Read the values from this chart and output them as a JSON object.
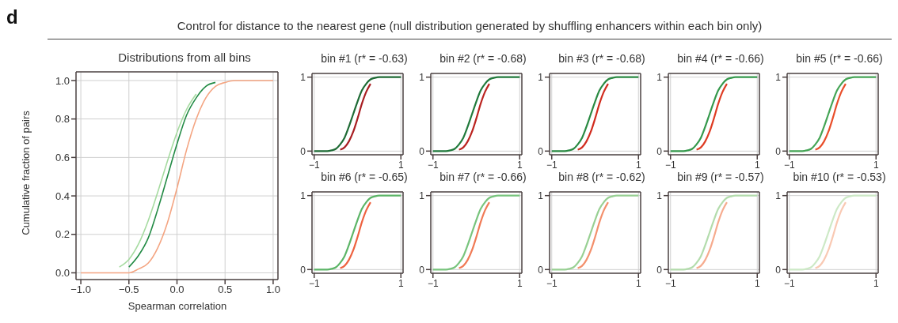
{
  "chart_data": [
    {
      "type": "line",
      "title": "Distributions from all bins",
      "xlabel": "Spearman correlation",
      "ylabel": "Cumulative fraction of pairs",
      "annotations": [
        "d",
        "Control for distance to the nearest gene (null distribution generated by shuffling enhancers within each bin only)"
      ],
      "x": [
        -1,
        -0.9,
        -0.8,
        -0.7,
        -0.6,
        -0.5,
        -0.4,
        -0.3,
        -0.2,
        -0.1,
        0,
        0.1,
        0.2,
        0.3,
        0.4,
        0.5,
        0.6,
        0.7,
        0.8,
        0.9,
        1
      ],
      "series": [
        {
          "color": "#a6dba0",
          "values": [
            null,
            null,
            null,
            null,
            0.03,
            0.07,
            0.15,
            0.27,
            0.42,
            0.58,
            0.73,
            0.85,
            0.93,
            null,
            null,
            null,
            null,
            null,
            null,
            null,
            null
          ]
        },
        {
          "color": "#238b45",
          "values": [
            null,
            null,
            null,
            null,
            null,
            0.03,
            0.09,
            0.18,
            0.33,
            0.5,
            0.67,
            0.82,
            0.91,
            0.97,
            0.99,
            null,
            null,
            null,
            null,
            null,
            null
          ]
        },
        {
          "color": "#f4a582",
          "values": [
            0,
            0,
            0,
            0,
            0,
            0,
            0.02,
            0.05,
            0.13,
            0.26,
            0.44,
            0.64,
            0.8,
            0.91,
            0.97,
            0.99,
            1,
            1,
            1,
            1,
            1
          ]
        }
      ],
      "xlim": [
        -1.05,
        1.05
      ],
      "ylim": [
        -0.035,
        1.045
      ],
      "xticks": [
        {
          "value": -1,
          "label": "−1.0"
        },
        {
          "value": -0.5,
          "label": "−0.5"
        },
        {
          "value": 0,
          "label": "0.0"
        },
        {
          "value": 0.5,
          "label": "0.5"
        },
        {
          "value": 1,
          "label": "1.0"
        }
      ],
      "yticks": [
        {
          "value": 0,
          "label": "0.0"
        },
        {
          "value": 0.2,
          "label": "0.2"
        },
        {
          "value": 0.4,
          "label": "0.4"
        },
        {
          "value": 0.6,
          "label": "0.6"
        },
        {
          "value": 0.8,
          "label": "0.8"
        },
        {
          "value": 1,
          "label": "1.0"
        }
      ],
      "grid": true
    },
    {
      "type": "line",
      "title": "bin #1 (r* = -0.63)",
      "x": [
        -1,
        -0.9,
        -0.8,
        -0.7,
        -0.6,
        -0.5,
        -0.4,
        -0.3,
        -0.2,
        -0.1,
        0,
        0.1,
        0.2,
        0.3,
        0.4,
        0.5,
        0.6,
        0.7,
        0.8,
        0.9,
        1
      ],
      "series": [
        {
          "color": "#a81e22",
          "values": [
            null,
            null,
            null,
            null,
            null,
            null,
            0.02,
            0.05,
            0.13,
            0.26,
            0.44,
            0.64,
            0.8,
            0.91,
            null,
            null,
            null,
            null,
            null,
            null,
            null
          ]
        },
        {
          "color": "#1e6b35",
          "values": [
            0,
            0,
            0,
            0,
            0.01,
            0.03,
            0.09,
            0.18,
            0.33,
            0.5,
            0.67,
            0.82,
            0.91,
            0.97,
            0.99,
            1,
            1,
            1,
            1,
            1,
            1
          ]
        }
      ],
      "xlim": [
        -1.05,
        1.05
      ],
      "ylim": [
        -0.05,
        1.05
      ],
      "xticks": [
        {
          "value": -1,
          "label": "−1"
        },
        {
          "value": 1,
          "label": "1"
        }
      ],
      "yticks": [
        {
          "value": 0,
          "label": "0"
        },
        {
          "value": 1,
          "label": "1"
        }
      ],
      "grid": true
    },
    {
      "type": "line",
      "title": "bin #2 (r* = -0.68)",
      "x": [
        -1,
        -0.9,
        -0.8,
        -0.7,
        -0.6,
        -0.5,
        -0.4,
        -0.3,
        -0.2,
        -0.1,
        0,
        0.1,
        0.2,
        0.3,
        0.4,
        0.5,
        0.6,
        0.7,
        0.8,
        0.9,
        1
      ],
      "series": [
        {
          "color": "#bb2420",
          "values": [
            null,
            null,
            null,
            null,
            null,
            null,
            0.02,
            0.05,
            0.13,
            0.26,
            0.44,
            0.64,
            0.8,
            0.91,
            null,
            null,
            null,
            null,
            null,
            null,
            null
          ]
        },
        {
          "color": "#217a3c",
          "values": [
            0,
            0,
            0,
            0,
            0.01,
            0.03,
            0.09,
            0.18,
            0.33,
            0.5,
            0.67,
            0.82,
            0.91,
            0.97,
            0.99,
            1,
            1,
            1,
            1,
            1,
            1
          ]
        }
      ],
      "xlim": [
        -1.05,
        1.05
      ],
      "ylim": [
        -0.05,
        1.05
      ],
      "xticks": [
        {
          "value": -1,
          "label": "−1"
        },
        {
          "value": 1,
          "label": "1"
        }
      ],
      "yticks": [
        {
          "value": 0,
          "label": "0"
        },
        {
          "value": 1,
          "label": "1"
        }
      ],
      "grid": true
    },
    {
      "type": "line",
      "title": "bin #3 (r* = -0.68)",
      "x": [
        -1,
        -0.9,
        -0.8,
        -0.7,
        -0.6,
        -0.5,
        -0.4,
        -0.3,
        -0.2,
        -0.1,
        0,
        0.1,
        0.2,
        0.3,
        0.4,
        0.5,
        0.6,
        0.7,
        0.8,
        0.9,
        1
      ],
      "series": [
        {
          "color": "#d12c1e",
          "values": [
            null,
            null,
            null,
            null,
            null,
            null,
            0.02,
            0.05,
            0.13,
            0.26,
            0.44,
            0.64,
            0.8,
            0.91,
            null,
            null,
            null,
            null,
            null,
            null,
            null
          ]
        },
        {
          "color": "#2a8a43",
          "values": [
            0,
            0,
            0,
            0,
            0.01,
            0.03,
            0.09,
            0.18,
            0.33,
            0.5,
            0.67,
            0.82,
            0.91,
            0.97,
            0.99,
            1,
            1,
            1,
            1,
            1,
            1
          ]
        }
      ],
      "xlim": [
        -1.05,
        1.05
      ],
      "ylim": [
        -0.05,
        1.05
      ],
      "xticks": [
        {
          "value": -1,
          "label": "−1"
        },
        {
          "value": 1,
          "label": "1"
        }
      ],
      "yticks": [
        {
          "value": 0,
          "label": "0"
        },
        {
          "value": 1,
          "label": "1"
        }
      ],
      "grid": true
    },
    {
      "type": "line",
      "title": "bin #4 (r* = -0.66)",
      "x": [
        -1,
        -0.9,
        -0.8,
        -0.7,
        -0.6,
        -0.5,
        -0.4,
        -0.3,
        -0.2,
        -0.1,
        0,
        0.1,
        0.2,
        0.3,
        0.4,
        0.5,
        0.6,
        0.7,
        0.8,
        0.9,
        1
      ],
      "series": [
        {
          "color": "#de3b22",
          "values": [
            null,
            null,
            null,
            null,
            null,
            null,
            0.02,
            0.05,
            0.13,
            0.26,
            0.44,
            0.64,
            0.8,
            0.91,
            null,
            null,
            null,
            null,
            null,
            null,
            null
          ]
        },
        {
          "color": "#34994c",
          "values": [
            0,
            0,
            0,
            0,
            0.01,
            0.03,
            0.09,
            0.18,
            0.33,
            0.5,
            0.67,
            0.82,
            0.91,
            0.97,
            0.99,
            1,
            1,
            1,
            1,
            1,
            1
          ]
        }
      ],
      "xlim": [
        -1.05,
        1.05
      ],
      "ylim": [
        -0.05,
        1.05
      ],
      "xticks": [
        {
          "value": -1,
          "label": "−1"
        },
        {
          "value": 1,
          "label": "1"
        }
      ],
      "yticks": [
        {
          "value": 0,
          "label": "0"
        },
        {
          "value": 1,
          "label": "1"
        }
      ],
      "grid": true
    },
    {
      "type": "line",
      "title": "bin #5 (r* = -0.66)",
      "x": [
        -1,
        -0.9,
        -0.8,
        -0.7,
        -0.6,
        -0.5,
        -0.4,
        -0.3,
        -0.2,
        -0.1,
        0,
        0.1,
        0.2,
        0.3,
        0.4,
        0.5,
        0.6,
        0.7,
        0.8,
        0.9,
        1
      ],
      "series": [
        {
          "color": "#e94e2a",
          "values": [
            null,
            null,
            null,
            null,
            null,
            null,
            0.02,
            0.05,
            0.13,
            0.26,
            0.44,
            0.64,
            0.8,
            0.91,
            null,
            null,
            null,
            null,
            null,
            null,
            null
          ]
        },
        {
          "color": "#45a556",
          "values": [
            0,
            0,
            0,
            0,
            0.01,
            0.03,
            0.09,
            0.18,
            0.33,
            0.5,
            0.67,
            0.82,
            0.91,
            0.97,
            0.99,
            1,
            1,
            1,
            1,
            1,
            1
          ]
        }
      ],
      "xlim": [
        -1.05,
        1.05
      ],
      "ylim": [
        -0.05,
        1.05
      ],
      "xticks": [
        {
          "value": -1,
          "label": "−1"
        },
        {
          "value": 1,
          "label": "1"
        }
      ],
      "yticks": [
        {
          "value": 0,
          "label": "0"
        },
        {
          "value": 1,
          "label": "1"
        }
      ],
      "grid": true
    },
    {
      "type": "line",
      "title": "bin #6 (r* = -0.65)",
      "x": [
        -1,
        -0.9,
        -0.8,
        -0.7,
        -0.6,
        -0.5,
        -0.4,
        -0.3,
        -0.2,
        -0.1,
        0,
        0.1,
        0.2,
        0.3,
        0.4,
        0.5,
        0.6,
        0.7,
        0.8,
        0.9,
        1
      ],
      "series": [
        {
          "color": "#ee6240",
          "values": [
            null,
            null,
            null,
            null,
            null,
            null,
            0.02,
            0.05,
            0.13,
            0.26,
            0.44,
            0.64,
            0.8,
            0.91,
            null,
            null,
            null,
            null,
            null,
            null,
            null
          ]
        },
        {
          "color": "#5cb567",
          "values": [
            0,
            0,
            0,
            0,
            0.01,
            0.03,
            0.09,
            0.18,
            0.33,
            0.5,
            0.67,
            0.82,
            0.91,
            0.97,
            0.99,
            1,
            1,
            1,
            1,
            1,
            1
          ]
        }
      ],
      "xlim": [
        -1.05,
        1.05
      ],
      "ylim": [
        -0.05,
        1.05
      ],
      "xticks": [
        {
          "value": -1,
          "label": "−1"
        },
        {
          "value": 1,
          "label": "1"
        }
      ],
      "yticks": [
        {
          "value": 0,
          "label": "0"
        },
        {
          "value": 1,
          "label": "1"
        }
      ],
      "grid": true
    },
    {
      "type": "line",
      "title": "bin #7 (r* = -0.66)",
      "x": [
        -1,
        -0.9,
        -0.8,
        -0.7,
        -0.6,
        -0.5,
        -0.4,
        -0.3,
        -0.2,
        -0.1,
        0,
        0.1,
        0.2,
        0.3,
        0.4,
        0.5,
        0.6,
        0.7,
        0.8,
        0.9,
        1
      ],
      "series": [
        {
          "color": "#f07a55",
          "values": [
            null,
            null,
            null,
            null,
            null,
            null,
            0.02,
            0.05,
            0.13,
            0.26,
            0.44,
            0.64,
            0.8,
            0.91,
            null,
            null,
            null,
            null,
            null,
            null,
            null
          ]
        },
        {
          "color": "#78c47d",
          "values": [
            0,
            0,
            0,
            0,
            0.01,
            0.03,
            0.09,
            0.18,
            0.33,
            0.5,
            0.67,
            0.82,
            0.91,
            0.97,
            0.99,
            1,
            1,
            1,
            1,
            1,
            1
          ]
        }
      ],
      "xlim": [
        -1.05,
        1.05
      ],
      "ylim": [
        -0.05,
        1.05
      ],
      "xticks": [
        {
          "value": -1,
          "label": "−1"
        },
        {
          "value": 1,
          "label": "1"
        }
      ],
      "yticks": [
        {
          "value": 0,
          "label": "0"
        },
        {
          "value": 1,
          "label": "1"
        }
      ],
      "grid": true
    },
    {
      "type": "line",
      "title": "bin #8 (r* = -0.62)",
      "x": [
        -1,
        -0.9,
        -0.8,
        -0.7,
        -0.6,
        -0.5,
        -0.4,
        -0.3,
        -0.2,
        -0.1,
        0,
        0.1,
        0.2,
        0.3,
        0.4,
        0.5,
        0.6,
        0.7,
        0.8,
        0.9,
        1
      ],
      "series": [
        {
          "color": "#f3906c",
          "values": [
            null,
            null,
            null,
            null,
            null,
            null,
            0.02,
            0.05,
            0.13,
            0.26,
            0.44,
            0.64,
            0.8,
            0.91,
            null,
            null,
            null,
            null,
            null,
            null,
            null
          ]
        },
        {
          "color": "#98d093",
          "values": [
            0,
            0,
            0,
            0,
            0.01,
            0.03,
            0.09,
            0.18,
            0.33,
            0.5,
            0.67,
            0.82,
            0.91,
            0.97,
            0.99,
            1,
            1,
            1,
            1,
            1,
            1
          ]
        }
      ],
      "xlim": [
        -1.05,
        1.05
      ],
      "ylim": [
        -0.05,
        1.05
      ],
      "xticks": [
        {
          "value": -1,
          "label": "−1"
        },
        {
          "value": 1,
          "label": "1"
        }
      ],
      "yticks": [
        {
          "value": 0,
          "label": "0"
        },
        {
          "value": 1,
          "label": "1"
        }
      ],
      "grid": true
    },
    {
      "type": "line",
      "title": "bin #9 (r* = -0.57)",
      "x": [
        -1,
        -0.9,
        -0.8,
        -0.7,
        -0.6,
        -0.5,
        -0.4,
        -0.3,
        -0.2,
        -0.1,
        0,
        0.1,
        0.2,
        0.3,
        0.4,
        0.5,
        0.6,
        0.7,
        0.8,
        0.9,
        1
      ],
      "series": [
        {
          "color": "#f6ab8e",
          "values": [
            null,
            null,
            null,
            null,
            null,
            null,
            0.02,
            0.05,
            0.13,
            0.26,
            0.44,
            0.64,
            0.8,
            0.91,
            null,
            null,
            null,
            null,
            null,
            null,
            null
          ]
        },
        {
          "color": "#b3dcac",
          "values": [
            0,
            0,
            0,
            0,
            0.01,
            0.03,
            0.09,
            0.18,
            0.33,
            0.5,
            0.67,
            0.82,
            0.91,
            0.97,
            0.99,
            1,
            1,
            1,
            1,
            1,
            1
          ]
        }
      ],
      "xlim": [
        -1.05,
        1.05
      ],
      "ylim": [
        -0.05,
        1.05
      ],
      "xticks": [
        {
          "value": -1,
          "label": "−1"
        },
        {
          "value": 1,
          "label": "1"
        }
      ],
      "yticks": [
        {
          "value": 0,
          "label": "0"
        },
        {
          "value": 1,
          "label": "1"
        }
      ],
      "grid": true
    },
    {
      "type": "line",
      "title": "bin #10 (r* = -0.53)",
      "x": [
        -1,
        -0.9,
        -0.8,
        -0.7,
        -0.6,
        -0.5,
        -0.4,
        -0.3,
        -0.2,
        -0.1,
        0,
        0.1,
        0.2,
        0.3,
        0.4,
        0.5,
        0.6,
        0.7,
        0.8,
        0.9,
        1
      ],
      "series": [
        {
          "color": "#f9c9b3",
          "values": [
            null,
            null,
            null,
            null,
            null,
            null,
            0.02,
            0.05,
            0.13,
            0.26,
            0.44,
            0.64,
            0.8,
            0.91,
            null,
            null,
            null,
            null,
            null,
            null,
            null
          ]
        },
        {
          "color": "#cde9c6",
          "values": [
            0,
            0,
            0,
            0,
            0.01,
            0.03,
            0.09,
            0.18,
            0.33,
            0.5,
            0.67,
            0.82,
            0.91,
            0.97,
            0.99,
            1,
            1,
            1,
            1,
            1,
            1
          ]
        }
      ],
      "xlim": [
        -1.05,
        1.05
      ],
      "ylim": [
        -0.05,
        1.05
      ],
      "xticks": [
        {
          "value": -1,
          "label": "−1"
        },
        {
          "value": 1,
          "label": "1"
        }
      ],
      "yticks": [
        {
          "value": 0,
          "label": "0"
        },
        {
          "value": 1,
          "label": "1"
        }
      ],
      "grid": true
    }
  ]
}
